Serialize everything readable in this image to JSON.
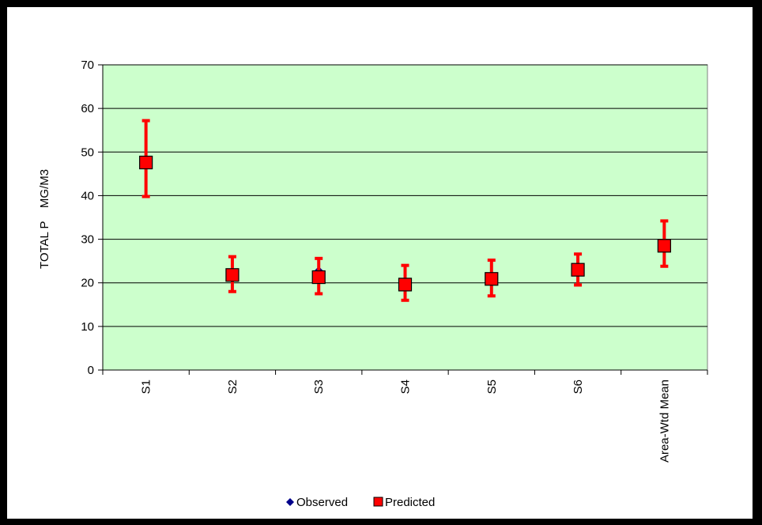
{
  "chart_data": {
    "type": "scatter",
    "title": "",
    "xlabel": "",
    "ylabel": "TOTAL P    MG/M3",
    "categories": [
      "S1",
      "S2",
      "S3",
      "S4",
      "S5",
      "S6",
      "Area-Wtd Mean"
    ],
    "ylim": [
      0,
      70
    ],
    "yticks": [
      0,
      10,
      20,
      30,
      40,
      50,
      60,
      70
    ],
    "grid": true,
    "legend_position": "bottom",
    "series": [
      {
        "name": "Observed",
        "marker": "diamond",
        "color": "#00008b",
        "values": [
          47.5,
          22,
          22.5,
          19.5,
          21,
          23,
          28.5
        ]
      },
      {
        "name": "Predicted",
        "marker": "square",
        "color": "#ff0000",
        "values": [
          47.6,
          21.8,
          21.3,
          19.6,
          20.9,
          23.0,
          28.5
        ],
        "error_low": [
          39.8,
          18.0,
          17.5,
          16.0,
          17.0,
          19.5,
          23.8
        ],
        "error_high": [
          57.2,
          26.0,
          25.6,
          24.0,
          25.2,
          26.6,
          34.2
        ]
      }
    ],
    "colors": {
      "plot_background": "#ccffcc",
      "error_bar": "#ff0000",
      "frame": "#000000"
    }
  }
}
